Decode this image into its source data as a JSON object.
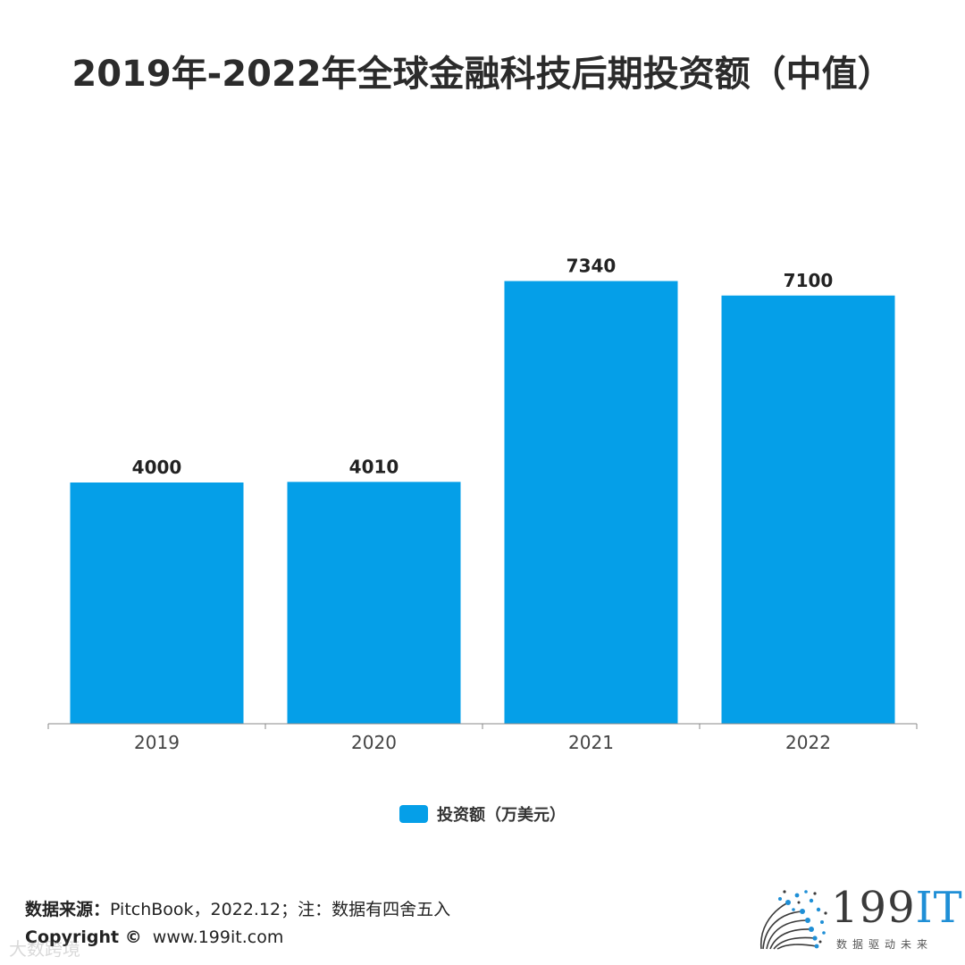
{
  "title": "2019年-2022年全球金融科技后期投资额（中值）",
  "chart_data": {
    "type": "bar",
    "categories": [
      "2019",
      "2020",
      "2021",
      "2022"
    ],
    "series": [
      {
        "name": "投资额（万美元）",
        "values": [
          4000,
          4010,
          7340,
          7100
        ],
        "color": "#059fe8"
      }
    ],
    "ylim": [
      0,
      8000
    ],
    "grid": false,
    "legend": "bottom-center"
  },
  "legend": {
    "label": "投资额（万美元）",
    "color": "#059fe8"
  },
  "footer": {
    "source_label": "数据来源：",
    "source_text": "PitchBook，2022.12；注：数据有四舍五入",
    "copyright_label": "Copyright ©",
    "copyright_site": "www.199it.com",
    "watermark": "大数跨境"
  },
  "logo": {
    "number": "199",
    "it": "IT",
    "tagline": "数据驱动未来"
  }
}
